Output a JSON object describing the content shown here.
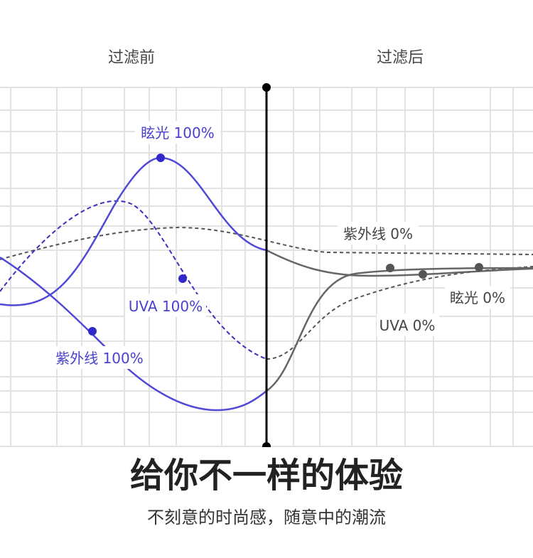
{
  "header": {
    "before": "过滤前",
    "after": "过滤后"
  },
  "labels": {
    "glare_before": "眩光 100%",
    "uva_before": "UVA 100%",
    "uv_before": "紫外线 100%",
    "uv_after": "紫外线 0%",
    "glare_after": "眩光 0%",
    "uva_after": "UVA 0%"
  },
  "headline": "给你不一样的体验",
  "subtitle": "不刻意的时尚感，随意中的潮流"
}
